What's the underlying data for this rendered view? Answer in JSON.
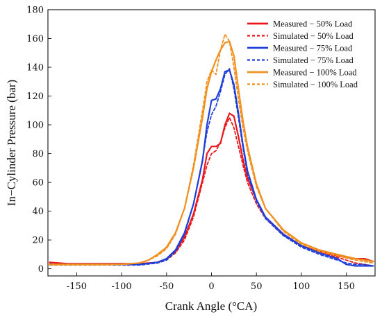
{
  "chart_data": {
    "type": "line",
    "xlabel": "Crank Angle (°CA)",
    "ylabel": "In−Cylinder Pressure (bar)",
    "xlim": [
      -182,
      182
    ],
    "ylim": [
      -5,
      180
    ],
    "xticks": [
      -150,
      -100,
      -50,
      0,
      50,
      100,
      150
    ],
    "yticks": [
      0,
      20,
      40,
      60,
      80,
      100,
      120,
      140,
      160,
      180
    ],
    "xtick_labels": [
      "-150",
      "-100",
      "-50",
      "0",
      "50",
      "100",
      "150"
    ],
    "ytick_labels": [
      "0",
      "20",
      "40",
      "60",
      "80",
      "100",
      "120",
      "140",
      "160",
      "180"
    ],
    "grid": false,
    "legend_position": "top-right",
    "series": [
      {
        "name": "Measured − 50% Load",
        "color": "#e8181c",
        "dash": "solid",
        "x": [
          -180,
          -160,
          -120,
          -100,
          -80,
          -60,
          -50,
          -40,
          -30,
          -20,
          -10,
          -5,
          0,
          5,
          10,
          15,
          20,
          25,
          30,
          35,
          40,
          50,
          60,
          80,
          100,
          120,
          140,
          160,
          170,
          180
        ],
        "y": [
          4.5,
          3.5,
          3.5,
          3.5,
          3.5,
          4.5,
          7,
          12,
          22,
          38,
          62,
          80,
          85,
          85,
          87,
          100,
          108,
          106,
          92,
          76,
          63,
          48,
          36,
          24,
          16,
          12,
          9,
          7,
          7,
          5
        ]
      },
      {
        "name": "Simulated − 50% Load",
        "color": "#e8181c",
        "dash": "dashed",
        "x": [
          -180,
          -160,
          -120,
          -100,
          -80,
          -60,
          -50,
          -40,
          -30,
          -20,
          -10,
          -5,
          0,
          5,
          10,
          15,
          20,
          25,
          30,
          35,
          40,
          50,
          60,
          80,
          100,
          120,
          140,
          150,
          160,
          170,
          180
        ],
        "y": [
          3.5,
          3,
          3,
          3,
          3,
          4,
          6,
          11,
          20,
          36,
          60,
          72,
          80,
          82,
          88,
          98,
          105,
          98,
          85,
          72,
          60,
          45,
          35,
          23,
          16,
          11,
          8,
          6,
          4,
          3,
          2
        ]
      },
      {
        "name": "Measured − 75% Load",
        "color": "#1f3fd8",
        "dash": "solid",
        "x": [
          -180,
          -160,
          -120,
          -100,
          -80,
          -60,
          -50,
          -40,
          -30,
          -20,
          -10,
          -5,
          0,
          5,
          10,
          15,
          20,
          25,
          30,
          35,
          40,
          50,
          60,
          80,
          100,
          120,
          140,
          150,
          160,
          170,
          180
        ],
        "y": [
          3,
          3,
          3,
          3,
          3,
          4.5,
          7,
          13,
          25,
          45,
          75,
          100,
          117,
          118,
          125,
          137,
          138,
          128,
          108,
          86,
          68,
          48,
          36,
          24,
          16,
          11,
          7,
          3,
          2,
          2,
          2
        ]
      },
      {
        "name": "Simulated − 75% Load",
        "color": "#1f3fd8",
        "dash": "dashed",
        "x": [
          -180,
          -160,
          -120,
          -100,
          -80,
          -60,
          -50,
          -40,
          -30,
          -20,
          -10,
          -5,
          0,
          5,
          10,
          15,
          20,
          25,
          30,
          35,
          40,
          50,
          60,
          80,
          100,
          120,
          140,
          150,
          160,
          170,
          180
        ],
        "y": [
          2.5,
          2.5,
          2.5,
          2.5,
          2.5,
          4,
          6,
          12,
          24,
          45,
          76,
          95,
          107,
          113,
          123,
          135,
          139,
          125,
          105,
          84,
          66,
          47,
          35,
          23,
          15,
          10,
          6,
          4,
          3,
          3,
          2
        ]
      },
      {
        "name": "Measured − 100% Load",
        "color": "#f0901e",
        "dash": "solid",
        "x": [
          -180,
          -160,
          -120,
          -100,
          -80,
          -70,
          -60,
          -50,
          -40,
          -30,
          -20,
          -10,
          -5,
          0,
          5,
          10,
          15,
          20,
          25,
          30,
          35,
          40,
          50,
          60,
          80,
          100,
          120,
          140,
          160,
          180
        ],
        "y": [
          3,
          3,
          3,
          3,
          4,
          6,
          10,
          15,
          25,
          42,
          70,
          105,
          125,
          137,
          145,
          152,
          157,
          158,
          148,
          125,
          103,
          85,
          59,
          42,
          27,
          18,
          13,
          10,
          7,
          5
        ]
      },
      {
        "name": "Simulated − 100% Load",
        "color": "#f0901e",
        "dash": "dashed",
        "x": [
          -180,
          -160,
          -120,
          -100,
          -80,
          -70,
          -60,
          -50,
          -40,
          -30,
          -20,
          -10,
          -5,
          0,
          5,
          10,
          15,
          20,
          25,
          30,
          35,
          40,
          50,
          60,
          80,
          100,
          120,
          140,
          160,
          180
        ],
        "y": [
          2.5,
          2.5,
          2.5,
          3,
          4,
          6,
          9,
          14,
          24,
          42,
          72,
          110,
          130,
          138,
          135,
          152,
          163,
          158,
          140,
          118,
          98,
          82,
          57,
          42,
          26,
          17,
          12,
          9,
          6,
          4
        ]
      }
    ]
  }
}
